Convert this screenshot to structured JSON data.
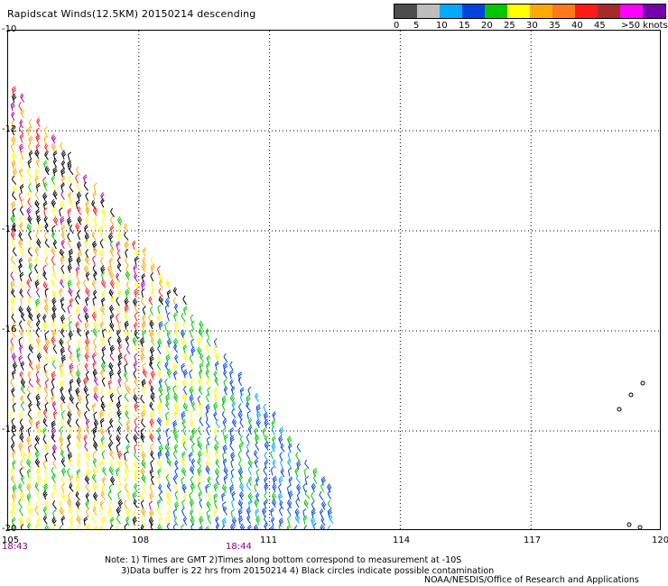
{
  "title": "Rapidscat Winds(12.5KM) 20150214 descending",
  "legend": {
    "colors": [
      "#4d4d4d",
      "#bdbdbd",
      "#00aaff",
      "#0044dd",
      "#00c800",
      "#ffff00",
      "#ffaa00",
      "#ff7a1a",
      "#ff1a1a",
      "#a52a2a",
      "#ff00ff",
      "#7700aa"
    ],
    "labels": [
      "0",
      "5",
      "10",
      "15",
      "20",
      "25",
      "30",
      "35",
      "40",
      "45",
      ">50 knots"
    ]
  },
  "axes": {
    "lat_labels": [
      "-10",
      "-12",
      "-14",
      "-16",
      "-18",
      "-20"
    ],
    "lon_labels": [
      "105",
      "108",
      "111",
      "114",
      "117",
      "120"
    ],
    "time_labels": [
      "18:43",
      "18:44"
    ]
  },
  "note": "Note: 1) Times are GMT 2)Times along bottom correspond to measurement at -10S\n      3)Data buffer is 22 hrs from 20150214 4) Black circles indicate possible contamination",
  "credit": "NOAA/NESDIS/Office of Research and Applications",
  "chart_data": {
    "type": "map",
    "title": "Rapidscat Winds(12.5KM) 20150214 descending",
    "lat_range": [
      -20,
      -10
    ],
    "lon_range": [
      105,
      120
    ],
    "legend_bins_knots": [
      0,
      5,
      10,
      15,
      20,
      25,
      30,
      35,
      40,
      45,
      50
    ]
  }
}
